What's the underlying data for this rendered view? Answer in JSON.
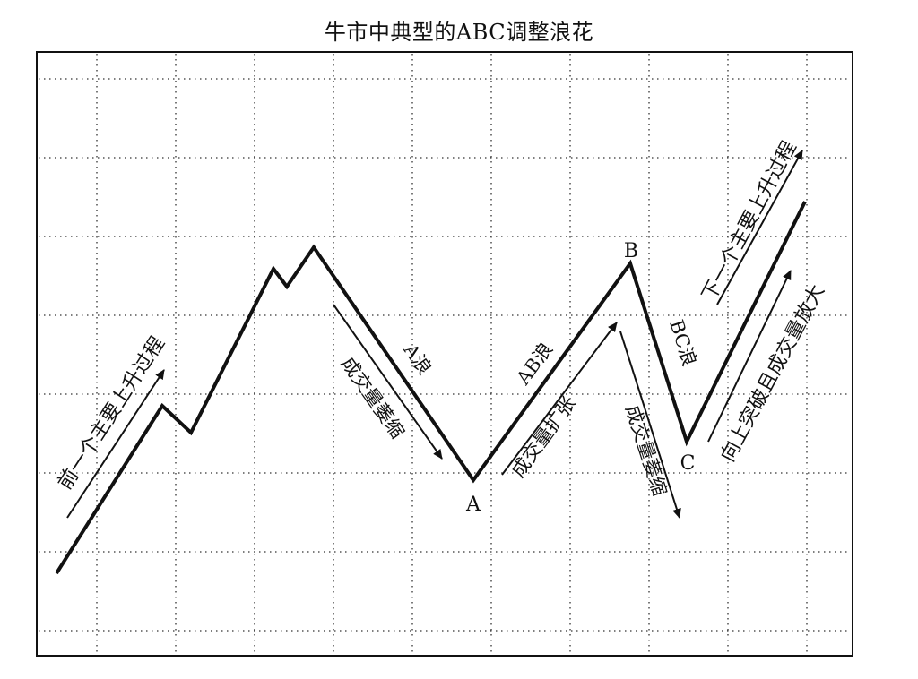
{
  "title": "牛市中典型的ABC调整浪花",
  "points": {
    "a": "A",
    "b": "B",
    "c": "C"
  },
  "waves": {
    "a_wave": "A浪",
    "ab_wave": "AB浪",
    "bc_wave": "BC浪"
  },
  "annotations": {
    "prev_rise": "前一个主要上升过程",
    "next_rise": "下一个主要上升过程",
    "volume_shrink_a": "成交量萎缩",
    "volume_expand_ab": "成交量扩张",
    "volume_shrink_bc": "成交量萎缩",
    "breakout_volume_up": "向上突破且成交量放大"
  },
  "colors": {
    "line": "#111111",
    "grid": "#333333",
    "background": "#ffffff"
  }
}
